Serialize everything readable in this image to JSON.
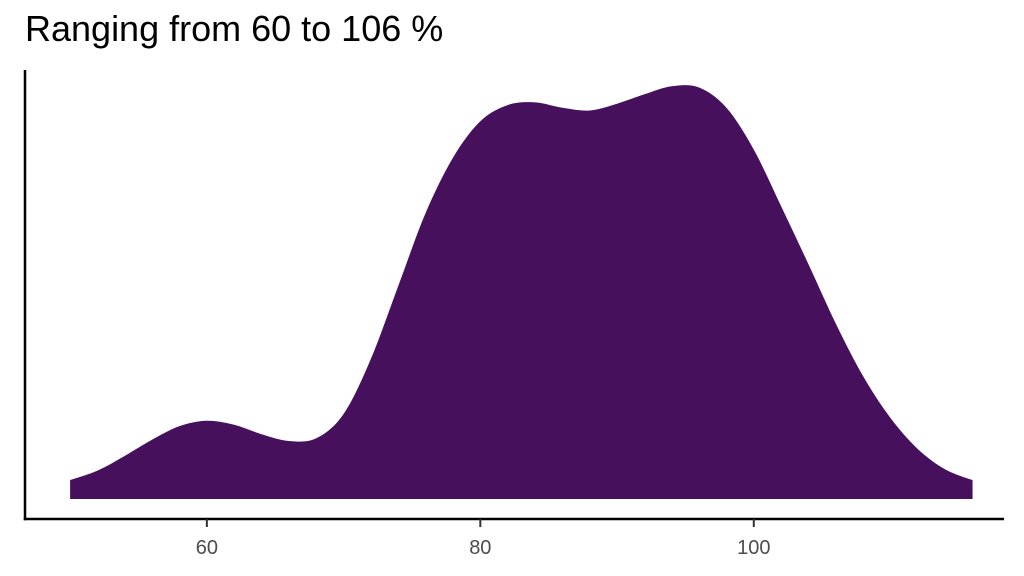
{
  "chart_data": {
    "type": "area",
    "title": "Ranging from 60 to 106 %",
    "xlabel": "",
    "ylabel": "",
    "xlim": [
      46.7,
      118.3
    ],
    "ylim": [
      0,
      0.0318
    ],
    "x_ticks": [
      60,
      80,
      100
    ],
    "y_ticks": [],
    "grid": false,
    "legend": "none",
    "fill_color": "#46105C",
    "series": [
      {
        "x": [
          50,
          52,
          54,
          56,
          58,
          60,
          62,
          64,
          66,
          68,
          70,
          72,
          74,
          76,
          78,
          80,
          82,
          84,
          86,
          88,
          90,
          92,
          94,
          96,
          98,
          100,
          102,
          104,
          106,
          108,
          110,
          112,
          114,
          116
        ],
        "values": [
          0.0014,
          0.0021,
          0.0032,
          0.0044,
          0.0054,
          0.0058,
          0.0055,
          0.0048,
          0.0043,
          0.0045,
          0.0063,
          0.0104,
          0.0158,
          0.0212,
          0.0253,
          0.028,
          0.0292,
          0.0294,
          0.029,
          0.0288,
          0.0293,
          0.03,
          0.0306,
          0.0305,
          0.029,
          0.0259,
          0.0217,
          0.0174,
          0.013,
          0.0091,
          0.006,
          0.0037,
          0.0022,
          0.0014
        ]
      }
    ]
  }
}
